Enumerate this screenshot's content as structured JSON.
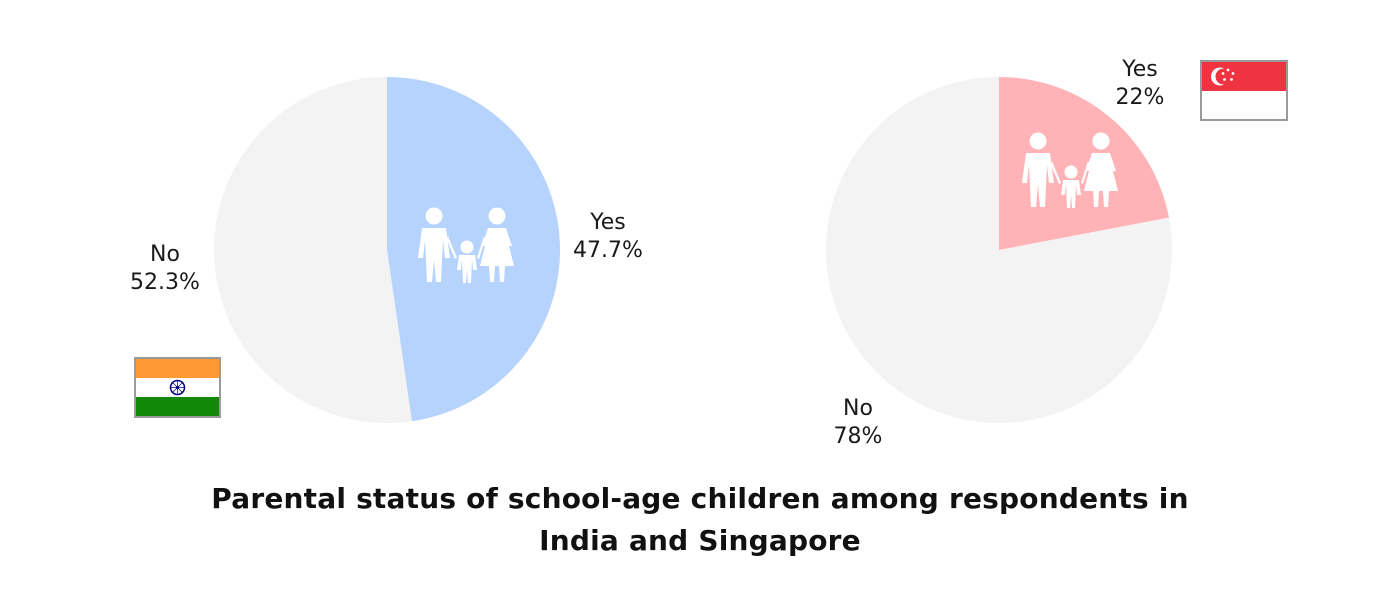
{
  "chart_data": [
    {
      "type": "pie",
      "country": "India",
      "flag": "india-flag",
      "slices": [
        {
          "label": "Yes",
          "value": 47.7,
          "value_text": "47.7%",
          "color": "#b5d3fc"
        },
        {
          "label": "No",
          "value": 52.3,
          "value_text": "52.3%",
          "color": "#f3f3f3"
        }
      ]
    },
    {
      "type": "pie",
      "country": "Singapore",
      "flag": "singapore-flag",
      "slices": [
        {
          "label": "Yes",
          "value": 22,
          "value_text": "22%",
          "color": "#ffb3b6"
        },
        {
          "label": "No",
          "value": 78,
          "value_text": "78%",
          "color": "#f3f3f3"
        }
      ]
    }
  ],
  "caption": {
    "line1": "Parental status of school-age children among respondents in",
    "line2": "India and Singapore"
  },
  "icons": {
    "family": "family-icon",
    "india_flag_colors": {
      "saffron": "#ff9933",
      "white": "#ffffff",
      "green": "#138808",
      "chakra": "#000080"
    },
    "singapore_flag_colors": {
      "red": "#ef3340",
      "white": "#ffffff"
    }
  }
}
